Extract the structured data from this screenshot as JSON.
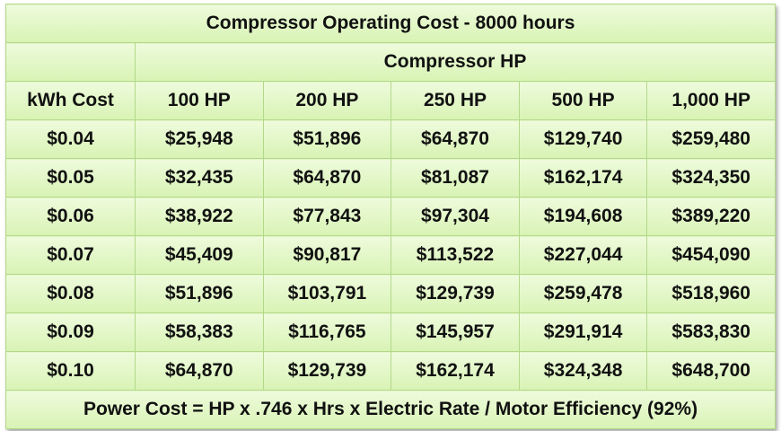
{
  "title": "Compressor Operating Cost - 8000 hours",
  "group_header": "Compressor HP",
  "row_header_label": "kWh Cost",
  "columns": [
    "100 HP",
    "200 HP",
    "250 HP",
    "500 HP",
    "1,000 HP"
  ],
  "rows": [
    {
      "rate": "$0.04",
      "values": [
        "$25,948",
        "$51,896",
        "$64,870",
        "$129,740",
        "$259,480"
      ]
    },
    {
      "rate": "$0.05",
      "values": [
        "$32,435",
        "$64,870",
        "$81,087",
        "$162,174",
        "$324,350"
      ]
    },
    {
      "rate": "$0.06",
      "values": [
        "$38,922",
        "$77,843",
        "$97,304",
        "$194,608",
        "$389,220"
      ]
    },
    {
      "rate": "$0.07",
      "values": [
        "$45,409",
        "$90,817",
        "$113,522",
        "$227,044",
        "$454,090"
      ]
    },
    {
      "rate": "$0.08",
      "values": [
        "$51,896",
        "$103,791",
        "$129,739",
        "$259,478",
        "$518,960"
      ]
    },
    {
      "rate": "$0.09",
      "values": [
        "$58,383",
        "$116,765",
        "$145,957",
        "$291,914",
        "$583,830"
      ]
    },
    {
      "rate": "$0.10",
      "values": [
        "$64,870",
        "$129,739",
        "$162,174",
        "$324,348",
        "$648,700"
      ]
    }
  ],
  "footer": "Power Cost = HP x .746 x Hrs x Electric Rate / Motor Efficiency (92%)",
  "colors": {
    "cell_top": "#eefbdc",
    "cell_bottom": "#d8f3b4",
    "border": "#b3d88a"
  }
}
